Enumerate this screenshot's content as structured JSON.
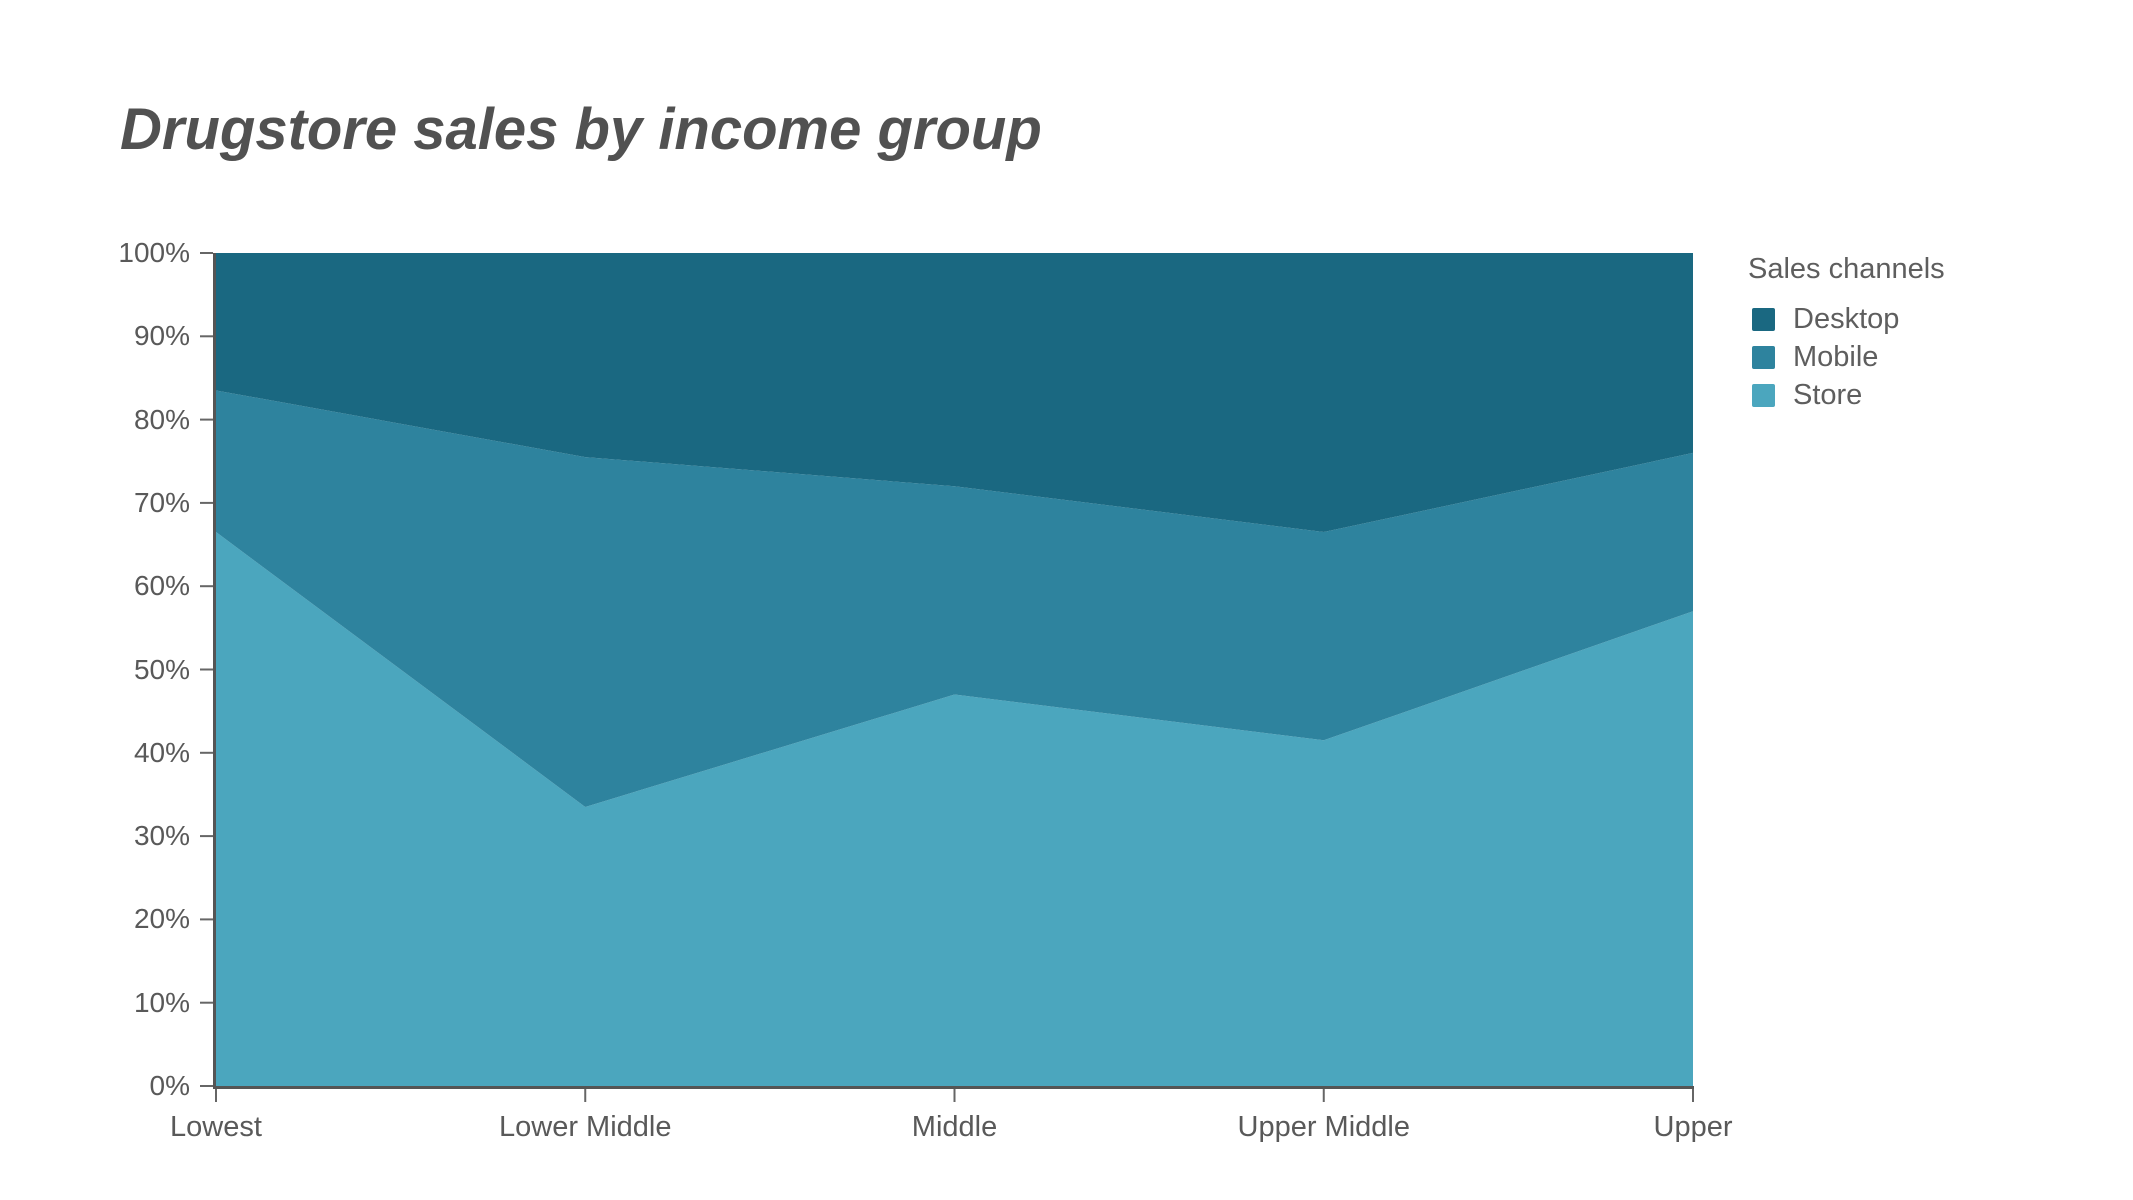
{
  "title": "Drugstore sales by income group",
  "legend": {
    "title": "Sales channels",
    "items": [
      {
        "label": "Desktop",
        "color": "#1a6881"
      },
      {
        "label": "Mobile",
        "color": "#2e839e"
      },
      {
        "label": "Store",
        "color": "#4ba6be"
      }
    ]
  },
  "axis": {
    "line_color": "#555555",
    "tick_color": "#666666",
    "label_color": "#595959"
  },
  "chart_data": {
    "type": "area",
    "stacked": true,
    "normalized_percent": true,
    "title": "Drugstore sales by income group",
    "xlabel": "",
    "ylabel": "",
    "ylim": [
      0,
      100
    ],
    "grid": false,
    "legend_title": "Sales channels",
    "legend_position": "right",
    "categories": [
      "Lowest",
      "Lower Middle",
      "Middle",
      "Upper Middle",
      "Upper"
    ],
    "y_ticks": [
      "0%",
      "10%",
      "20%",
      "30%",
      "40%",
      "50%",
      "60%",
      "70%",
      "80%",
      "90%",
      "100%"
    ],
    "series": [
      {
        "name": "Store",
        "color": "#4ba6be",
        "values": [
          66.5,
          33.5,
          47.0,
          41.5,
          57.0
        ]
      },
      {
        "name": "Mobile",
        "color": "#2e839e",
        "values": [
          17.0,
          42.0,
          25.0,
          25.0,
          19.0
        ]
      },
      {
        "name": "Desktop",
        "color": "#1a6881",
        "values": [
          16.5,
          24.5,
          28.0,
          33.5,
          24.0
        ]
      }
    ],
    "cumulative_tops_percent": {
      "store_top": [
        66.5,
        33.5,
        47.0,
        41.5,
        57.0
      ],
      "mobile_top": [
        83.5,
        75.5,
        72.0,
        66.5,
        76.0
      ],
      "desktop_top": [
        100,
        100,
        100,
        100,
        100
      ]
    }
  }
}
